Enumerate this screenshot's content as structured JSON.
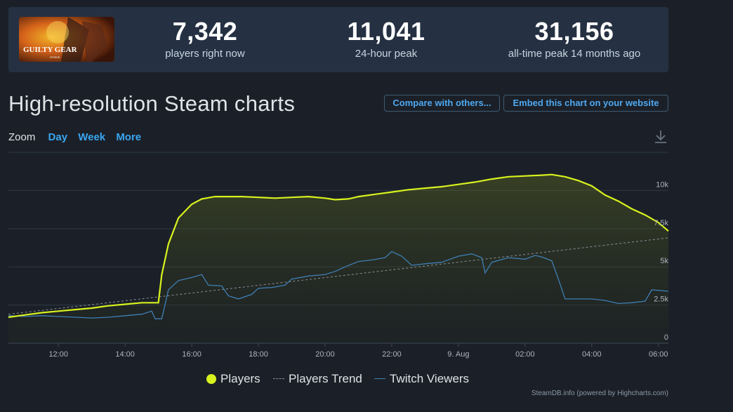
{
  "stats": [
    {
      "value": "7,342",
      "label": "players right now"
    },
    {
      "value": "11,041",
      "label": "24-hour peak"
    },
    {
      "value": "31,156",
      "label": "all-time peak 14 months ago"
    }
  ],
  "game": {
    "logo_text": "GUILTY GEAR",
    "logo_sub": "STRIVE"
  },
  "page_title": "High-resolution Steam charts",
  "buttons": {
    "compare": "Compare with others...",
    "embed": "Embed this chart on your website"
  },
  "zoom": {
    "label": "Zoom",
    "options": [
      "Day",
      "Week",
      "More"
    ]
  },
  "icons": {
    "download": "download-icon"
  },
  "colors": {
    "players": "#d8f21e",
    "trend": "#8a8f96",
    "twitch": "#3f7fb5",
    "link": "#3aa5f0"
  },
  "credit": "SteamDB.info (powered by Highcharts.com)",
  "chart_data": {
    "type": "line",
    "x_unit": "hours (local time axis)",
    "x_tick_labels": [
      {
        "x": 12,
        "label": "12:00"
      },
      {
        "x": 14,
        "label": "14:00"
      },
      {
        "x": 16,
        "label": "16:00"
      },
      {
        "x": 18,
        "label": "18:00"
      },
      {
        "x": 20,
        "label": "20:00"
      },
      {
        "x": 22,
        "label": "22:00"
      },
      {
        "x": 24,
        "label": "9. Aug"
      },
      {
        "x": 26,
        "label": "02:00"
      },
      {
        "x": 28,
        "label": "04:00"
      },
      {
        "x": 30,
        "label": "06:00"
      }
    ],
    "y_ticks": [
      {
        "value": 0,
        "label": "0"
      },
      {
        "value": 2500,
        "label": "2.5k"
      },
      {
        "value": 5000,
        "label": "5k"
      },
      {
        "value": 7500,
        "label": "7.5k"
      },
      {
        "value": 10000,
        "label": "10k"
      }
    ],
    "xlim": [
      10.5,
      30.3
    ],
    "ylim": [
      0,
      12500
    ],
    "grid": true,
    "legend_position": "bottom-center",
    "series": [
      {
        "name": "Players",
        "style": "area-line",
        "points": [
          [
            10.5,
            1700
          ],
          [
            11,
            1850
          ],
          [
            11.5,
            2000
          ],
          [
            12,
            2100
          ],
          [
            12.5,
            2200
          ],
          [
            13,
            2300
          ],
          [
            13.5,
            2450
          ],
          [
            14,
            2550
          ],
          [
            14.5,
            2650
          ],
          [
            15,
            2650
          ],
          [
            15.1,
            4500
          ],
          [
            15.3,
            6500
          ],
          [
            15.6,
            8200
          ],
          [
            16,
            9100
          ],
          [
            16.3,
            9450
          ],
          [
            16.7,
            9600
          ],
          [
            17,
            9600
          ],
          [
            17.5,
            9600
          ],
          [
            18,
            9550
          ],
          [
            18.5,
            9500
          ],
          [
            19,
            9550
          ],
          [
            19.5,
            9600
          ],
          [
            20,
            9500
          ],
          [
            20.3,
            9400
          ],
          [
            20.7,
            9450
          ],
          [
            21,
            9600
          ],
          [
            21.5,
            9750
          ],
          [
            22,
            9900
          ],
          [
            22.5,
            10050
          ],
          [
            23,
            10150
          ],
          [
            23.5,
            10250
          ],
          [
            24,
            10400
          ],
          [
            24.5,
            10550
          ],
          [
            25,
            10750
          ],
          [
            25.5,
            10900
          ],
          [
            26,
            10950
          ],
          [
            26.5,
            11000
          ],
          [
            26.8,
            11041
          ],
          [
            27.2,
            10900
          ],
          [
            27.6,
            10650
          ],
          [
            28,
            10300
          ],
          [
            28.4,
            9700
          ],
          [
            28.8,
            9300
          ],
          [
            29.2,
            8800
          ],
          [
            29.6,
            8400
          ],
          [
            30,
            7900
          ],
          [
            30.3,
            7342
          ]
        ]
      },
      {
        "name": "Players Trend",
        "style": "dashed",
        "points": [
          [
            10.5,
            1900
          ],
          [
            30.3,
            6900
          ]
        ]
      },
      {
        "name": "Twitch Viewers",
        "style": "line",
        "points": [
          [
            10.5,
            1800
          ],
          [
            11,
            1750
          ],
          [
            11.5,
            1800
          ],
          [
            12,
            1750
          ],
          [
            12.5,
            1700
          ],
          [
            13,
            1650
          ],
          [
            13.5,
            1700
          ],
          [
            14,
            1800
          ],
          [
            14.5,
            1900
          ],
          [
            14.8,
            2100
          ],
          [
            14.9,
            1600
          ],
          [
            15.1,
            1600
          ],
          [
            15.3,
            3500
          ],
          [
            15.6,
            4100
          ],
          [
            16,
            4300
          ],
          [
            16.3,
            4500
          ],
          [
            16.5,
            3800
          ],
          [
            16.9,
            3750
          ],
          [
            17.1,
            3100
          ],
          [
            17.4,
            2900
          ],
          [
            17.8,
            3200
          ],
          [
            18,
            3600
          ],
          [
            18.4,
            3650
          ],
          [
            18.8,
            3800
          ],
          [
            19,
            4200
          ],
          [
            19.5,
            4400
          ],
          [
            20,
            4500
          ],
          [
            20.3,
            4700
          ],
          [
            20.6,
            5000
          ],
          [
            21,
            5350
          ],
          [
            21.4,
            5450
          ],
          [
            21.8,
            5600
          ],
          [
            22,
            6000
          ],
          [
            22.3,
            5700
          ],
          [
            22.6,
            5100
          ],
          [
            23,
            5200
          ],
          [
            23.5,
            5300
          ],
          [
            24,
            5700
          ],
          [
            24.4,
            5850
          ],
          [
            24.7,
            5600
          ],
          [
            24.8,
            4600
          ],
          [
            25,
            5300
          ],
          [
            25.5,
            5600
          ],
          [
            26,
            5500
          ],
          [
            26.3,
            5750
          ],
          [
            26.5,
            5650
          ],
          [
            26.8,
            5400
          ],
          [
            27,
            4200
          ],
          [
            27.2,
            2900
          ],
          [
            27.5,
            2900
          ],
          [
            28,
            2900
          ],
          [
            28.4,
            2800
          ],
          [
            28.8,
            2600
          ],
          [
            29.2,
            2650
          ],
          [
            29.6,
            2750
          ],
          [
            29.8,
            3500
          ],
          [
            30.3,
            3400
          ]
        ]
      }
    ]
  }
}
